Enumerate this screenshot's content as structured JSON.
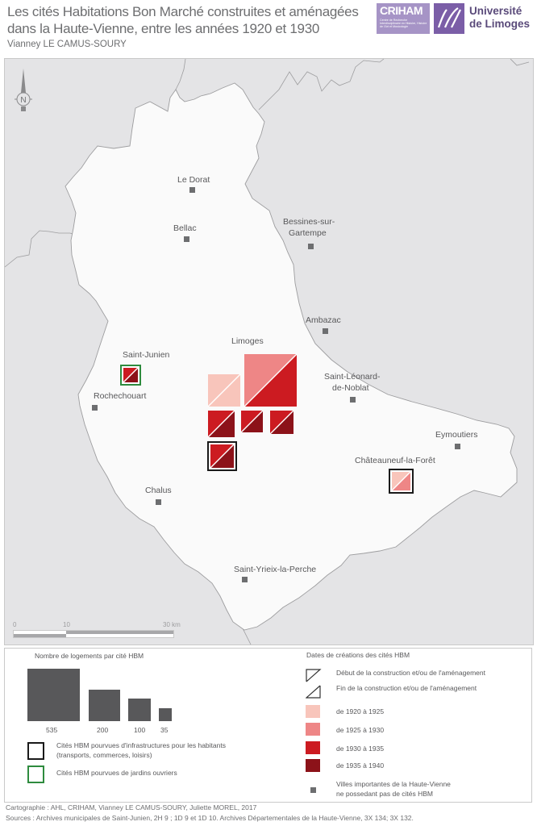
{
  "header": {
    "title_line1": "Les cités Habitations Bon Marché construites et aménagées",
    "title_line2": "dans la Haute-Vienne, entre les années 1920 et 1930",
    "author": "Vianney LE CAMUS-SOURY",
    "logo_criham": "CRIHAM",
    "logo_criham_sub": "Centre de Recherche Interdisciplinaire en Histoire, Histoire de l'Art et Musicologie",
    "logo_univ_line1": "Université",
    "logo_univ_line2": "de Limoges"
  },
  "map": {
    "compass_label": "N",
    "cities_without_hbm": [
      "Le Dorat",
      "Bellac",
      "Bessines-sur-",
      "Gartempe",
      "Ambazac",
      "Saint-Léonard-",
      "de-Noblat",
      "Rochechouart",
      "Eymoutiers",
      "Chalus",
      "Saint-Yrieix-la-Perche"
    ],
    "cities_with_hbm": [
      "Limoges",
      "Saint-Junien",
      "Châteauneuf-la-Forêt"
    ],
    "scale": {
      "labels": [
        "0",
        "10",
        "30 km"
      ]
    },
    "cites": [
      {
        "town": "Limoges",
        "housing": 535,
        "start": "1925-1930",
        "end": "1930-1935",
        "infrastructure": false,
        "gardens": false
      },
      {
        "town": "Limoges",
        "housing": 200,
        "start": "1920-1925",
        "end": "1920-1925",
        "infrastructure": false,
        "gardens": false
      },
      {
        "town": "Limoges",
        "housing": 100,
        "start": "1930-1935",
        "end": "1935-1940",
        "infrastructure": false,
        "gardens": false
      },
      {
        "town": "Limoges",
        "housing": 70,
        "start": "1930-1935",
        "end": "1935-1940",
        "infrastructure": false,
        "gardens": false
      },
      {
        "town": "Limoges",
        "housing": 70,
        "start": "1930-1935",
        "end": "1935-1940",
        "infrastructure": false,
        "gardens": false
      },
      {
        "town": "Limoges",
        "housing": 100,
        "start": "1930-1935",
        "end": "1935-1940",
        "infrastructure": true,
        "gardens": false
      },
      {
        "town": "Saint-Junien",
        "housing": 35,
        "start": "1930-1935",
        "end": "1935-1940",
        "infrastructure": false,
        "gardens": true
      },
      {
        "town": "Châteauneuf-la-Forêt",
        "housing": 50,
        "start": "1920-1925",
        "end": "1925-1930",
        "infrastructure": true,
        "gardens": false
      }
    ]
  },
  "legend": {
    "size_title": "Nombre de logements par cité HBM",
    "size_values": [
      "535",
      "200",
      "100",
      "35"
    ],
    "infrastructure_label_line1": "Cités HBM pourvues d'infrastructures pour les habitants",
    "infrastructure_label_line2": "(transports, commerces, loisirs)",
    "gardens_label": "Cités HBM pourvues de jardins ouvriers",
    "dates_title": "Dates de créations des cités HBM",
    "start_label": "Début de la construction et/ou de l'aménagement",
    "end_label": "Fin de la construction et/ou de l'aménagement",
    "periods": [
      {
        "label": "de 1920 à 1925",
        "color": "#f8c5bb"
      },
      {
        "label": "de 1925 à 1930",
        "color": "#ee8686"
      },
      {
        "label": "de 1930 à 1935",
        "color": "#cc1b21"
      },
      {
        "label": "de 1935 à 1940",
        "color": "#8c1219"
      }
    ],
    "towns_label_line1": "Villes importantes de la Haute-Vienne",
    "towns_label_line2": "ne possedant pas de cités HBM",
    "infrastructure_color": "#1a1a1a",
    "gardens_color": "#2e8b3e"
  },
  "footer": {
    "credits": "Cartographie : AHL, CRIHAM, Vianney LE CAMUS-SOURY, Juliette MOREL, 2017",
    "sources": "Sources :  Archives municipales de Saint-Junien, 2H 9 ; 1D 9 et 1D 10. Archives Départementales de la Haute-Vienne, 3X 134; 3X 132."
  }
}
